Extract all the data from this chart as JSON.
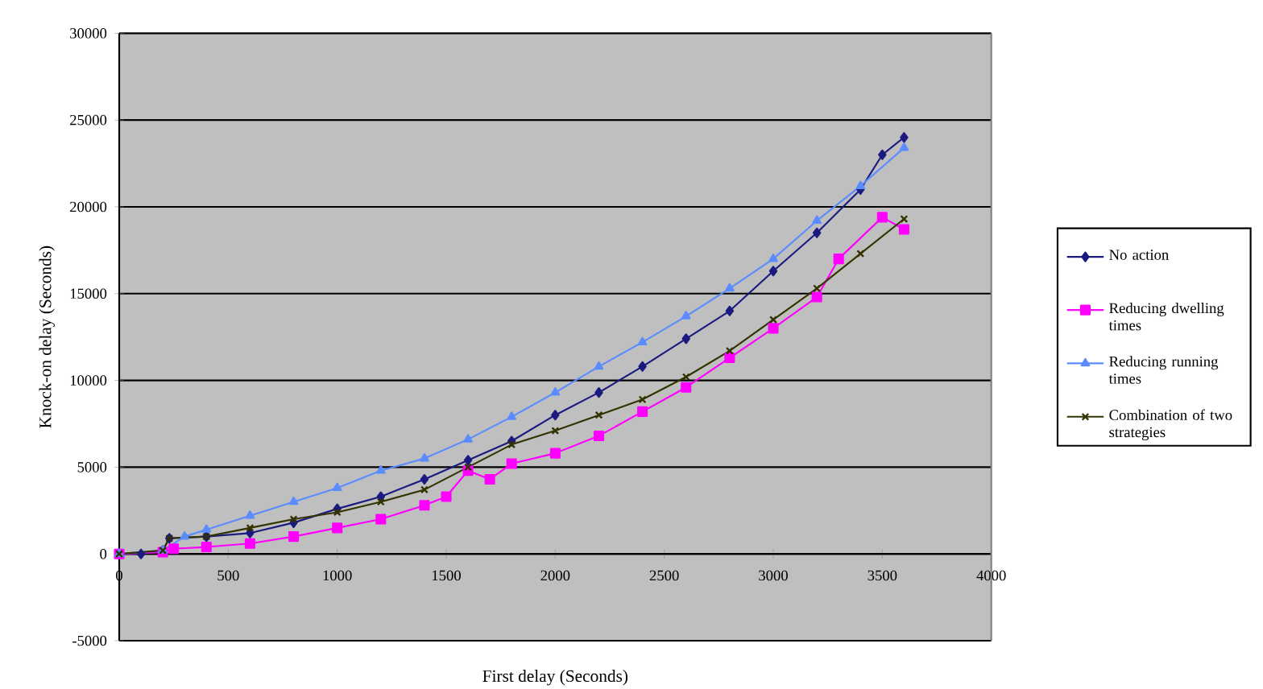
{
  "chart_data": {
    "type": "line",
    "xlabel": "First delay (Seconds)",
    "ylabel": "Knock-on delay (Seconds)",
    "xlim": [
      0,
      4000
    ],
    "xticks": [
      0,
      500,
      1000,
      1500,
      2000,
      2500,
      3000,
      3500,
      4000
    ],
    "ylim": [
      -5000,
      30000
    ],
    "yticks": [
      -5000,
      0,
      5000,
      10000,
      15000,
      20000,
      25000,
      30000
    ],
    "grid": "y",
    "legend": "right",
    "line_style": "solid",
    "series": [
      {
        "name": "No action",
        "color": "#1a1a80",
        "marker": "diamond",
        "x": [
          0,
          100,
          200,
          230,
          400,
          600,
          800,
          1000,
          1200,
          1400,
          1600,
          1800,
          2000,
          2200,
          2400,
          2600,
          2800,
          3000,
          3200,
          3400,
          3500,
          3600
        ],
        "values": [
          0,
          0,
          200,
          900,
          1000,
          1200,
          1800,
          2600,
          3300,
          4300,
          5400,
          6500,
          8000,
          9300,
          10800,
          12400,
          14000,
          16300,
          18500,
          21000,
          23000,
          24000
        ]
      },
      {
        "name": "Reducing dwelling times",
        "color": "#ff00ff",
        "marker": "square",
        "x": [
          0,
          200,
          250,
          400,
          600,
          800,
          1000,
          1200,
          1400,
          1500,
          1600,
          1700,
          1800,
          2000,
          2200,
          2400,
          2600,
          2800,
          3000,
          3200,
          3300,
          3500,
          3600
        ],
        "values": [
          0,
          100,
          300,
          400,
          600,
          1000,
          1500,
          2000,
          2800,
          3300,
          4800,
          4300,
          5200,
          5800,
          6800,
          8200,
          9600,
          11300,
          13000,
          14800,
          17000,
          19400,
          18700
        ]
      },
      {
        "name": "Reducing running times",
        "color": "#5b8cff",
        "marker": "triangle",
        "x": [
          0,
          200,
          300,
          400,
          600,
          800,
          1000,
          1200,
          1400,
          1600,
          1800,
          2000,
          2200,
          2400,
          2600,
          2800,
          3000,
          3200,
          3400,
          3600
        ],
        "values": [
          0,
          200,
          1000,
          1400,
          2200,
          3000,
          3800,
          4800,
          5500,
          6600,
          7900,
          9300,
          10800,
          12200,
          13700,
          15300,
          17000,
          19200,
          21200,
          23400
        ]
      },
      {
        "name": "Combination of two strategies",
        "color": "#333300",
        "marker": "cross",
        "x": [
          0,
          200,
          230,
          400,
          600,
          800,
          1000,
          1200,
          1400,
          1600,
          1800,
          2000,
          2200,
          2400,
          2600,
          2800,
          3000,
          3200,
          3400,
          3600
        ],
        "values": [
          0,
          200,
          900,
          1000,
          1500,
          2000,
          2400,
          3000,
          3700,
          5000,
          6300,
          7100,
          8000,
          8900,
          10200,
          11700,
          13500,
          15300,
          17300,
          19300
        ]
      }
    ]
  }
}
